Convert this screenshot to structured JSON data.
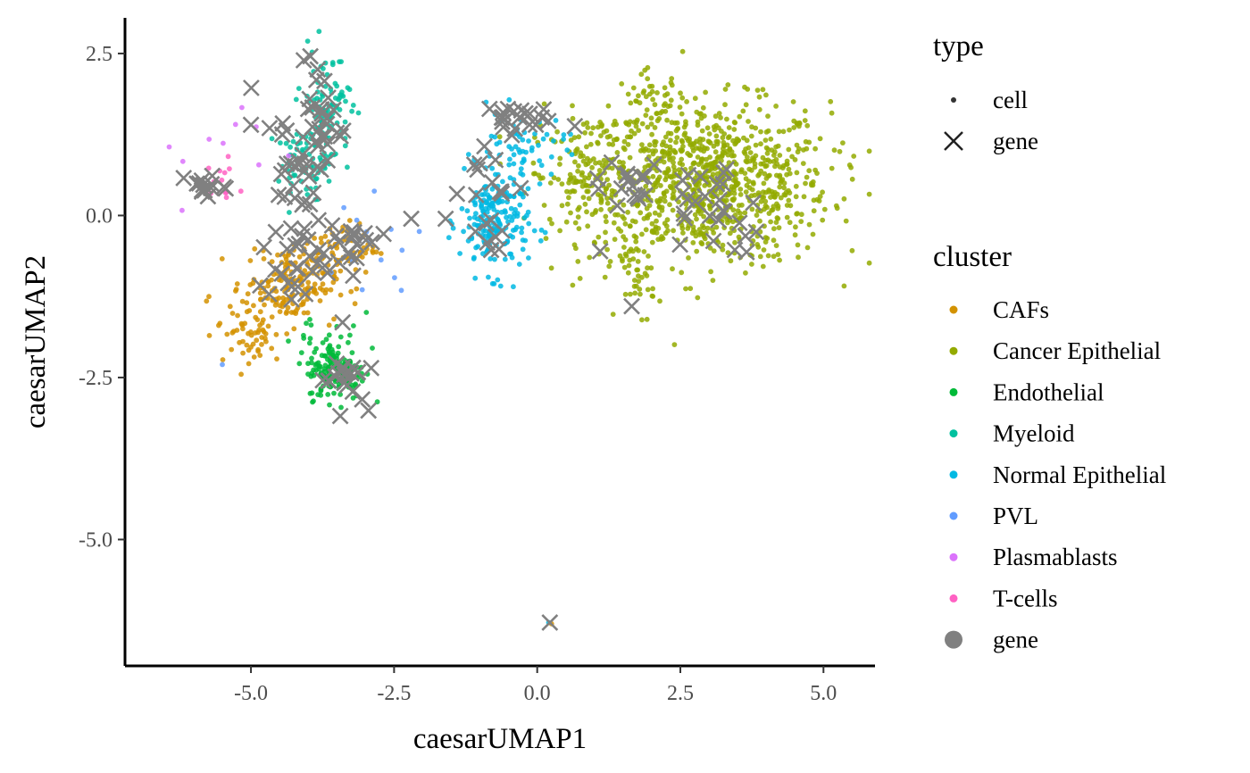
{
  "chart_data": {
    "type": "scatter",
    "title": "",
    "xlabel": "caesarUMAP1",
    "ylabel": "caesarUMAP2",
    "xlim": [
      -7.2,
      5.9
    ],
    "ylim": [
      -6.95,
      3.05
    ],
    "xticks": [
      -5.0,
      -2.5,
      0.0,
      2.5,
      5.0
    ],
    "yticks": [
      2.5,
      0.0,
      -2.5,
      -5.0
    ],
    "xtick_labels": [
      "-5.0",
      "-2.5",
      "0.0",
      "2.5",
      "5.0"
    ],
    "ytick_labels": [
      "2.5",
      "0.0",
      "-2.5",
      "-5.0"
    ],
    "grid": false,
    "legend_position": "right",
    "legend_type": {
      "title": "type",
      "entries": [
        {
          "label": "cell",
          "shape": "dot"
        },
        {
          "label": "gene",
          "shape": "cross"
        }
      ]
    },
    "legend_cluster": {
      "title": "cluster",
      "entries": [
        {
          "label": "CAFs",
          "color": "#D39200"
        },
        {
          "label": "Cancer Epithelial",
          "color": "#93AA00"
        },
        {
          "label": "Endothelial",
          "color": "#00BA38"
        },
        {
          "label": "Myeloid",
          "color": "#00C19F"
        },
        {
          "label": "Normal Epithelial",
          "color": "#00B9E3"
        },
        {
          "label": "PVL",
          "color": "#619CFF"
        },
        {
          "label": "Plasmablasts",
          "color": "#DB72FB"
        },
        {
          "label": "T-cells",
          "color": "#FF61C3"
        },
        {
          "label": "gene",
          "color": "#808080"
        }
      ]
    },
    "cell_clusters": [
      {
        "name": "Cancer Epithelial",
        "color": "#93AA00",
        "cx": 3.0,
        "cy": 0.5,
        "sx": 1.05,
        "sy": 0.62,
        "n": 900
      },
      {
        "name": "Cancer Epithelial",
        "color": "#93AA00",
        "cx": 1.0,
        "cy": 0.6,
        "sx": 0.55,
        "sy": 0.5,
        "n": 160
      },
      {
        "name": "Cancer Epithelial",
        "color": "#93AA00",
        "cx": 1.75,
        "cy": -1.0,
        "sx": 0.15,
        "sy": 0.3,
        "n": 35
      },
      {
        "name": "Cancer Epithelial",
        "color": "#93AA00",
        "cx": 2.0,
        "cy": 1.8,
        "sx": 0.3,
        "sy": 0.2,
        "n": 40
      },
      {
        "name": "Normal Epithelial",
        "color": "#00B9E3",
        "cx": -0.75,
        "cy": -0.1,
        "sx": 0.3,
        "sy": 0.4,
        "n": 200
      },
      {
        "name": "Normal Epithelial",
        "color": "#00B9E3",
        "cx": -0.3,
        "cy": 1.0,
        "sx": 0.4,
        "sy": 0.3,
        "n": 60
      },
      {
        "name": "CAFs",
        "color": "#D39200",
        "cx": -4.3,
        "cy": -1.05,
        "sx": 0.4,
        "sy": 0.3,
        "n": 170
      },
      {
        "name": "CAFs",
        "color": "#D39200",
        "cx": -5.0,
        "cy": -1.8,
        "sx": 0.3,
        "sy": 0.3,
        "n": 60
      },
      {
        "name": "CAFs",
        "color": "#D39200",
        "cx": -3.4,
        "cy": -0.5,
        "sx": 0.3,
        "sy": 0.2,
        "n": 60
      },
      {
        "name": "Endothelial",
        "color": "#00BA38",
        "cx": -3.5,
        "cy": -2.4,
        "sx": 0.25,
        "sy": 0.22,
        "n": 160
      },
      {
        "name": "Endothelial",
        "color": "#00BA38",
        "cx": -3.7,
        "cy": -1.8,
        "sx": 0.3,
        "sy": 0.3,
        "n": 20
      },
      {
        "name": "Myeloid",
        "color": "#00C19F",
        "cx": -3.7,
        "cy": 1.6,
        "sx": 0.22,
        "sy": 0.5,
        "n": 110
      },
      {
        "name": "Myeloid",
        "color": "#00C19F",
        "cx": -4.1,
        "cy": 0.8,
        "sx": 0.22,
        "sy": 0.25,
        "n": 50
      },
      {
        "name": "PVL",
        "color": "#619CFF",
        "cx": -3.0,
        "cy": -0.4,
        "sx": 0.5,
        "sy": 0.5,
        "n": 15
      },
      {
        "name": "Plasmablasts",
        "color": "#DB72FB",
        "cx": -5.2,
        "cy": 0.9,
        "sx": 0.5,
        "sy": 0.5,
        "n": 10
      },
      {
        "name": "T-cells",
        "color": "#FF61C3",
        "cx": -5.5,
        "cy": 0.5,
        "sx": 0.2,
        "sy": 0.2,
        "n": 12
      }
    ],
    "gene_clusters": [
      {
        "cx": -5.85,
        "cy": 0.48,
        "sx": 0.2,
        "sy": 0.1,
        "n": 14
      },
      {
        "cx": -3.9,
        "cy": 2.0,
        "sx": 0.1,
        "sy": 0.3,
        "n": 10
      },
      {
        "cx": -3.7,
        "cy": 1.3,
        "sx": 0.15,
        "sy": 0.2,
        "n": 16
      },
      {
        "cx": -4.4,
        "cy": 0.9,
        "sx": 0.3,
        "sy": 0.3,
        "n": 18
      },
      {
        "cx": -4.1,
        "cy": 0.3,
        "sx": 0.2,
        "sy": 0.2,
        "n": 10
      },
      {
        "cx": -4.2,
        "cy": -0.8,
        "sx": 0.35,
        "sy": 0.3,
        "n": 25
      },
      {
        "cx": -3.3,
        "cy": -0.4,
        "sx": 0.35,
        "sy": 0.25,
        "n": 18
      },
      {
        "cx": -3.4,
        "cy": -2.5,
        "sx": 0.2,
        "sy": 0.2,
        "n": 22
      },
      {
        "cx": -0.5,
        "cy": 1.5,
        "sx": 0.35,
        "sy": 0.12,
        "n": 20
      },
      {
        "cx": -0.8,
        "cy": 0.6,
        "sx": 0.3,
        "sy": 0.3,
        "n": 12
      },
      {
        "cx": -0.8,
        "cy": -0.3,
        "sx": 0.2,
        "sy": 0.2,
        "n": 8
      },
      {
        "cx": 1.5,
        "cy": 0.5,
        "sx": 0.3,
        "sy": 0.15,
        "n": 14
      },
      {
        "cx": 2.9,
        "cy": 0.3,
        "sx": 0.5,
        "sy": 0.35,
        "n": 22
      },
      {
        "cx": 3.4,
        "cy": -0.5,
        "sx": 0.3,
        "sy": 0.2,
        "n": 6
      }
    ],
    "gene_points": [
      {
        "x": 0.22,
        "y": -6.28
      },
      {
        "x": -5.0,
        "y": 1.4
      },
      {
        "x": -2.2,
        "y": -0.05
      },
      {
        "x": -1.6,
        "y": -0.05
      },
      {
        "x": 1.65,
        "y": -1.4
      },
      {
        "x": 1.1,
        "y": -0.55
      },
      {
        "x": -3.4,
        "y": -1.65
      },
      {
        "x": -4.3,
        "y": -0.2
      }
    ],
    "outlier_cells": [
      {
        "x": 0.2,
        "y": -6.28,
        "color": "#00B9E3"
      },
      {
        "x": 0.25,
        "y": -6.3,
        "color": "#D39200"
      },
      {
        "x": -5.5,
        "y": -2.3,
        "color": "#619CFF"
      }
    ]
  }
}
